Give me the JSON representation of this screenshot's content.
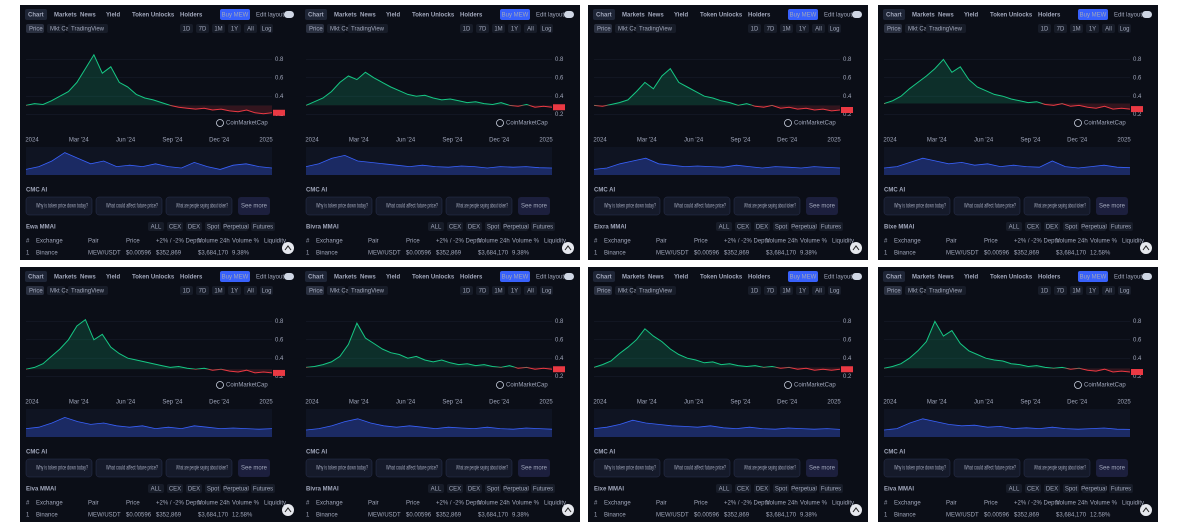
{
  "common": {
    "tabs": [
      "Chart",
      "Markets",
      "News",
      "Yield",
      "Token Unlocks",
      "Holders"
    ],
    "buy": "Buy MEW",
    "edit": "Edit layout",
    "chart_modes": [
      "Price",
      "Mkt Cap",
      "TradingView"
    ],
    "ranges": [
      "1D",
      "7D",
      "1M",
      "1Y",
      "All",
      "Log"
    ],
    "watermark": "CoinMarketCap",
    "ylim": [
      0,
      1
    ],
    "yticks": [
      0.2,
      0.4,
      0.6,
      0.8
    ],
    "xlabels": [
      "2024",
      "Mar '24",
      "Jun '24",
      "Sep '24",
      "Dec '24",
      "2025"
    ],
    "ai_title": "CMC AI",
    "questions": [
      "Why is token price down today?",
      "What could affect future price?",
      "What are people saying about token?"
    ],
    "see_more": "See more",
    "filters": [
      "ALL",
      "CEX",
      "DEX",
      "Spot",
      "Perpetual",
      "Futures"
    ],
    "columns": [
      "#",
      "Exchange",
      "Pair",
      "Price",
      "+2% / -2% Depth",
      "Volume 24h",
      "Volume %",
      "Liquidity"
    ],
    "row": [
      "1",
      "Binance",
      "MEW/USDT",
      "$0.00596",
      "$352,869",
      "$3,684,170"
    ],
    "up_color": "#16c784",
    "down_color": "#ea3943",
    "nav_color": "#3861fb"
  },
  "panels": [
    {
      "heading": "Ewa MMAI",
      "vol_pct": "9.38%",
      "price": [
        0.3,
        0.32,
        0.31,
        0.35,
        0.4,
        0.45,
        0.55,
        0.7,
        0.85,
        0.65,
        0.72,
        0.55,
        0.5,
        0.42,
        0.38,
        0.36,
        0.33,
        0.3,
        0.28,
        0.27,
        0.26,
        0.27,
        0.25,
        0.26,
        0.24,
        0.23,
        0.25,
        0.22,
        0.21,
        0.22
      ],
      "nav": [
        0.2,
        0.3,
        0.5,
        0.8,
        0.6,
        0.4,
        0.5,
        0.3,
        0.35,
        0.3,
        0.4,
        0.3,
        0.25,
        0.45,
        0.3,
        0.2,
        0.35,
        0.4,
        0.3,
        0.25
      ]
    },
    {
      "heading": "Bivra MMAI",
      "vol_pct": "9.38%",
      "price": [
        0.3,
        0.34,
        0.38,
        0.45,
        0.55,
        0.62,
        0.58,
        0.66,
        0.6,
        0.55,
        0.5,
        0.46,
        0.42,
        0.4,
        0.41,
        0.38,
        0.36,
        0.37,
        0.35,
        0.33,
        0.34,
        0.32,
        0.31,
        0.33,
        0.3,
        0.29,
        0.31,
        0.28,
        0.29,
        0.28
      ],
      "nav": [
        0.3,
        0.4,
        0.6,
        0.7,
        0.5,
        0.45,
        0.4,
        0.35,
        0.3,
        0.35,
        0.3,
        0.28,
        0.32,
        0.3,
        0.25,
        0.3,
        0.28,
        0.3,
        0.26,
        0.25
      ]
    },
    {
      "heading": "Eixra MMAI",
      "vol_pct": "9.38%",
      "price": [
        0.3,
        0.29,
        0.31,
        0.33,
        0.36,
        0.45,
        0.55,
        0.48,
        0.62,
        0.7,
        0.55,
        0.5,
        0.45,
        0.4,
        0.38,
        0.35,
        0.33,
        0.3,
        0.32,
        0.29,
        0.28,
        0.3,
        0.27,
        0.28,
        0.26,
        0.27,
        0.25,
        0.26,
        0.24,
        0.25
      ],
      "nav": [
        0.2,
        0.25,
        0.4,
        0.5,
        0.6,
        0.4,
        0.35,
        0.3,
        0.32,
        0.3,
        0.28,
        0.35,
        0.3,
        0.25,
        0.3,
        0.28,
        0.25,
        0.3,
        0.27,
        0.25
      ]
    },
    {
      "heading": "Bixe MMAI",
      "vol_pct": "12.58%",
      "price": [
        0.32,
        0.35,
        0.4,
        0.48,
        0.55,
        0.62,
        0.7,
        0.8,
        0.66,
        0.72,
        0.58,
        0.5,
        0.46,
        0.42,
        0.4,
        0.37,
        0.35,
        0.33,
        0.34,
        0.31,
        0.3,
        0.32,
        0.29,
        0.3,
        0.28,
        0.27,
        0.29,
        0.26,
        0.27,
        0.26
      ],
      "nav": [
        0.25,
        0.3,
        0.45,
        0.6,
        0.5,
        0.4,
        0.45,
        0.35,
        0.4,
        0.3,
        0.35,
        0.3,
        0.28,
        0.5,
        0.3,
        0.25,
        0.3,
        0.35,
        0.28,
        0.26
      ]
    },
    {
      "heading": "Eiva MMAI",
      "vol_pct": "12.58%",
      "price": [
        0.28,
        0.3,
        0.34,
        0.42,
        0.5,
        0.6,
        0.75,
        0.82,
        0.6,
        0.66,
        0.52,
        0.45,
        0.4,
        0.38,
        0.36,
        0.34,
        0.32,
        0.3,
        0.31,
        0.29,
        0.28,
        0.29,
        0.27,
        0.28,
        0.26,
        0.25,
        0.27,
        0.24,
        0.25,
        0.24
      ],
      "nav": [
        0.3,
        0.35,
        0.5,
        0.7,
        0.55,
        0.45,
        0.5,
        0.4,
        0.35,
        0.4,
        0.3,
        0.35,
        0.3,
        0.4,
        0.35,
        0.3,
        0.32,
        0.3,
        0.28,
        0.3
      ]
    },
    {
      "heading": "Bivra MMAI",
      "vol_pct": "9.38%",
      "price": [
        0.3,
        0.31,
        0.33,
        0.36,
        0.42,
        0.55,
        0.78,
        0.62,
        0.56,
        0.5,
        0.46,
        0.44,
        0.4,
        0.42,
        0.38,
        0.36,
        0.38,
        0.35,
        0.33,
        0.34,
        0.32,
        0.33,
        0.31,
        0.3,
        0.32,
        0.29,
        0.3,
        0.28,
        0.29,
        0.28
      ],
      "nav": [
        0.25,
        0.3,
        0.4,
        0.55,
        0.65,
        0.5,
        0.4,
        0.35,
        0.4,
        0.35,
        0.3,
        0.35,
        0.32,
        0.3,
        0.35,
        0.3,
        0.28,
        0.32,
        0.3,
        0.28
      ]
    },
    {
      "heading": "Eixe MMAI",
      "vol_pct": "9.38%",
      "price": [
        0.3,
        0.33,
        0.37,
        0.45,
        0.52,
        0.6,
        0.72,
        0.64,
        0.58,
        0.5,
        0.44,
        0.4,
        0.38,
        0.35,
        0.36,
        0.33,
        0.34,
        0.32,
        0.31,
        0.32,
        0.3,
        0.31,
        0.29,
        0.3,
        0.28,
        0.29,
        0.27,
        0.28,
        0.27,
        0.28
      ],
      "nav": [
        0.3,
        0.35,
        0.45,
        0.6,
        0.5,
        0.45,
        0.4,
        0.38,
        0.35,
        0.4,
        0.33,
        0.3,
        0.35,
        0.3,
        0.28,
        0.32,
        0.3,
        0.28,
        0.3,
        0.27
      ]
    },
    {
      "heading": "Eiva MMAI",
      "vol_pct": "12.58%",
      "price": [
        0.29,
        0.31,
        0.34,
        0.4,
        0.48,
        0.58,
        0.8,
        0.64,
        0.7,
        0.56,
        0.48,
        0.44,
        0.4,
        0.38,
        0.37,
        0.34,
        0.33,
        0.31,
        0.32,
        0.3,
        0.29,
        0.3,
        0.28,
        0.29,
        0.27,
        0.26,
        0.28,
        0.25,
        0.26,
        0.25
      ],
      "nav": [
        0.25,
        0.3,
        0.5,
        0.65,
        0.55,
        0.45,
        0.4,
        0.42,
        0.35,
        0.38,
        0.3,
        0.33,
        0.3,
        0.35,
        0.3,
        0.28,
        0.3,
        0.32,
        0.28,
        0.27
      ]
    }
  ]
}
